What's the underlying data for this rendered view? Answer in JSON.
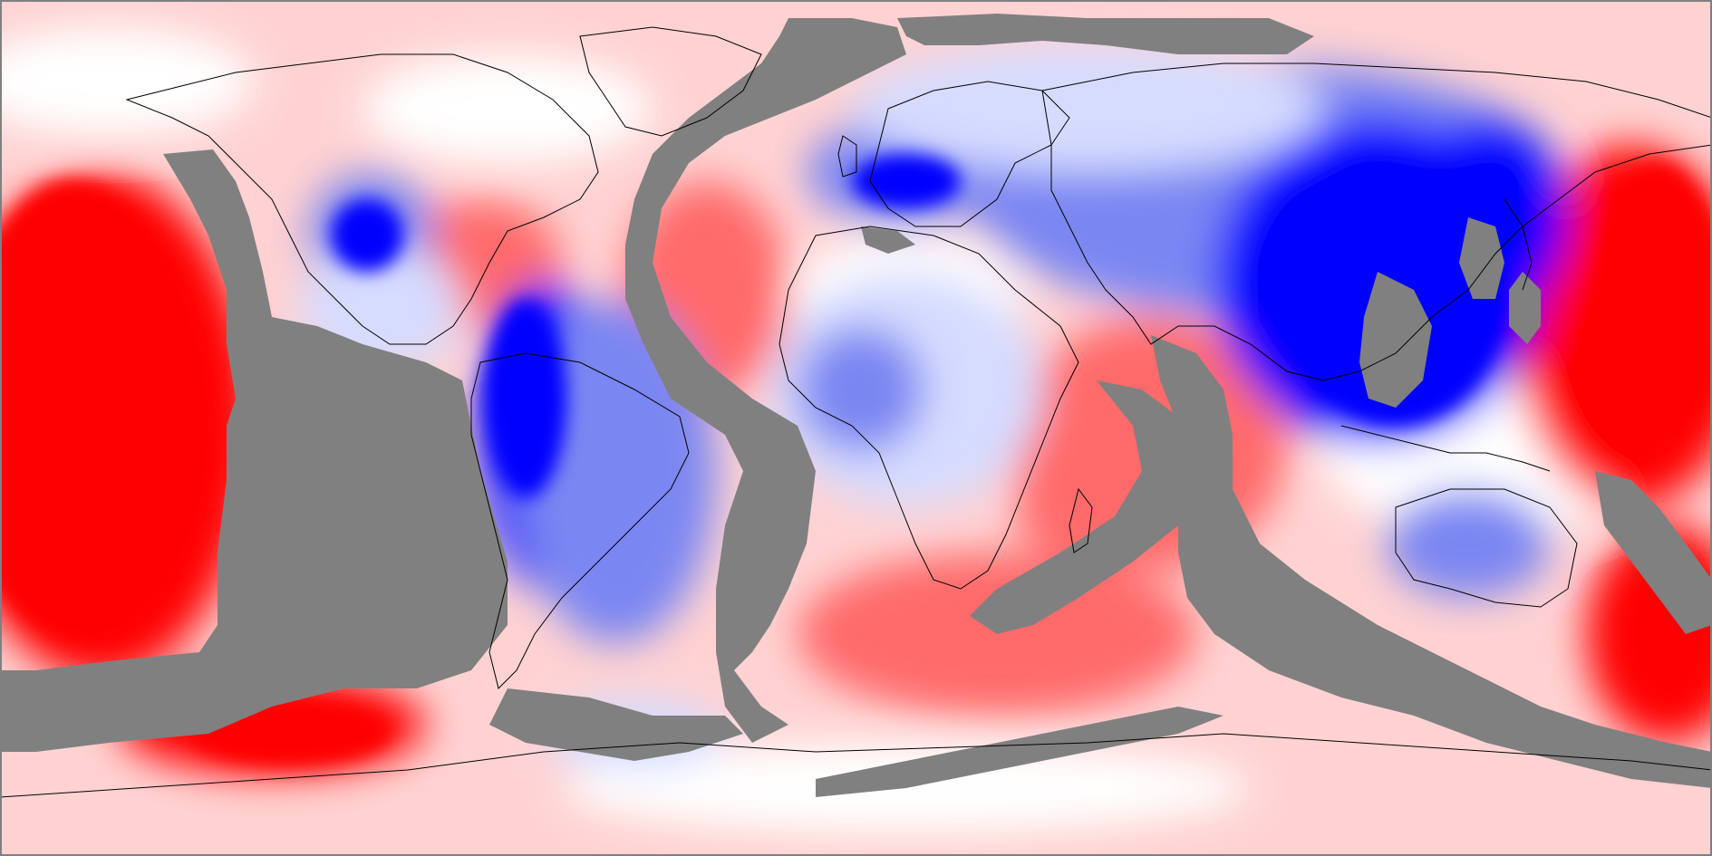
{
  "map": {
    "projection": "equirectangular",
    "colors": {
      "positive_strong": "#ff0000",
      "positive_mid": "#ff6a6a",
      "positive_weak": "#ffd2d2",
      "neutral": "#ffffff",
      "negative_weak": "#d6dcff",
      "negative_mid": "#7a86f2",
      "negative_strong": "#0000ff",
      "masked": "#808080",
      "coastline": "#000000",
      "frame": "#808080"
    },
    "legend": null
  }
}
